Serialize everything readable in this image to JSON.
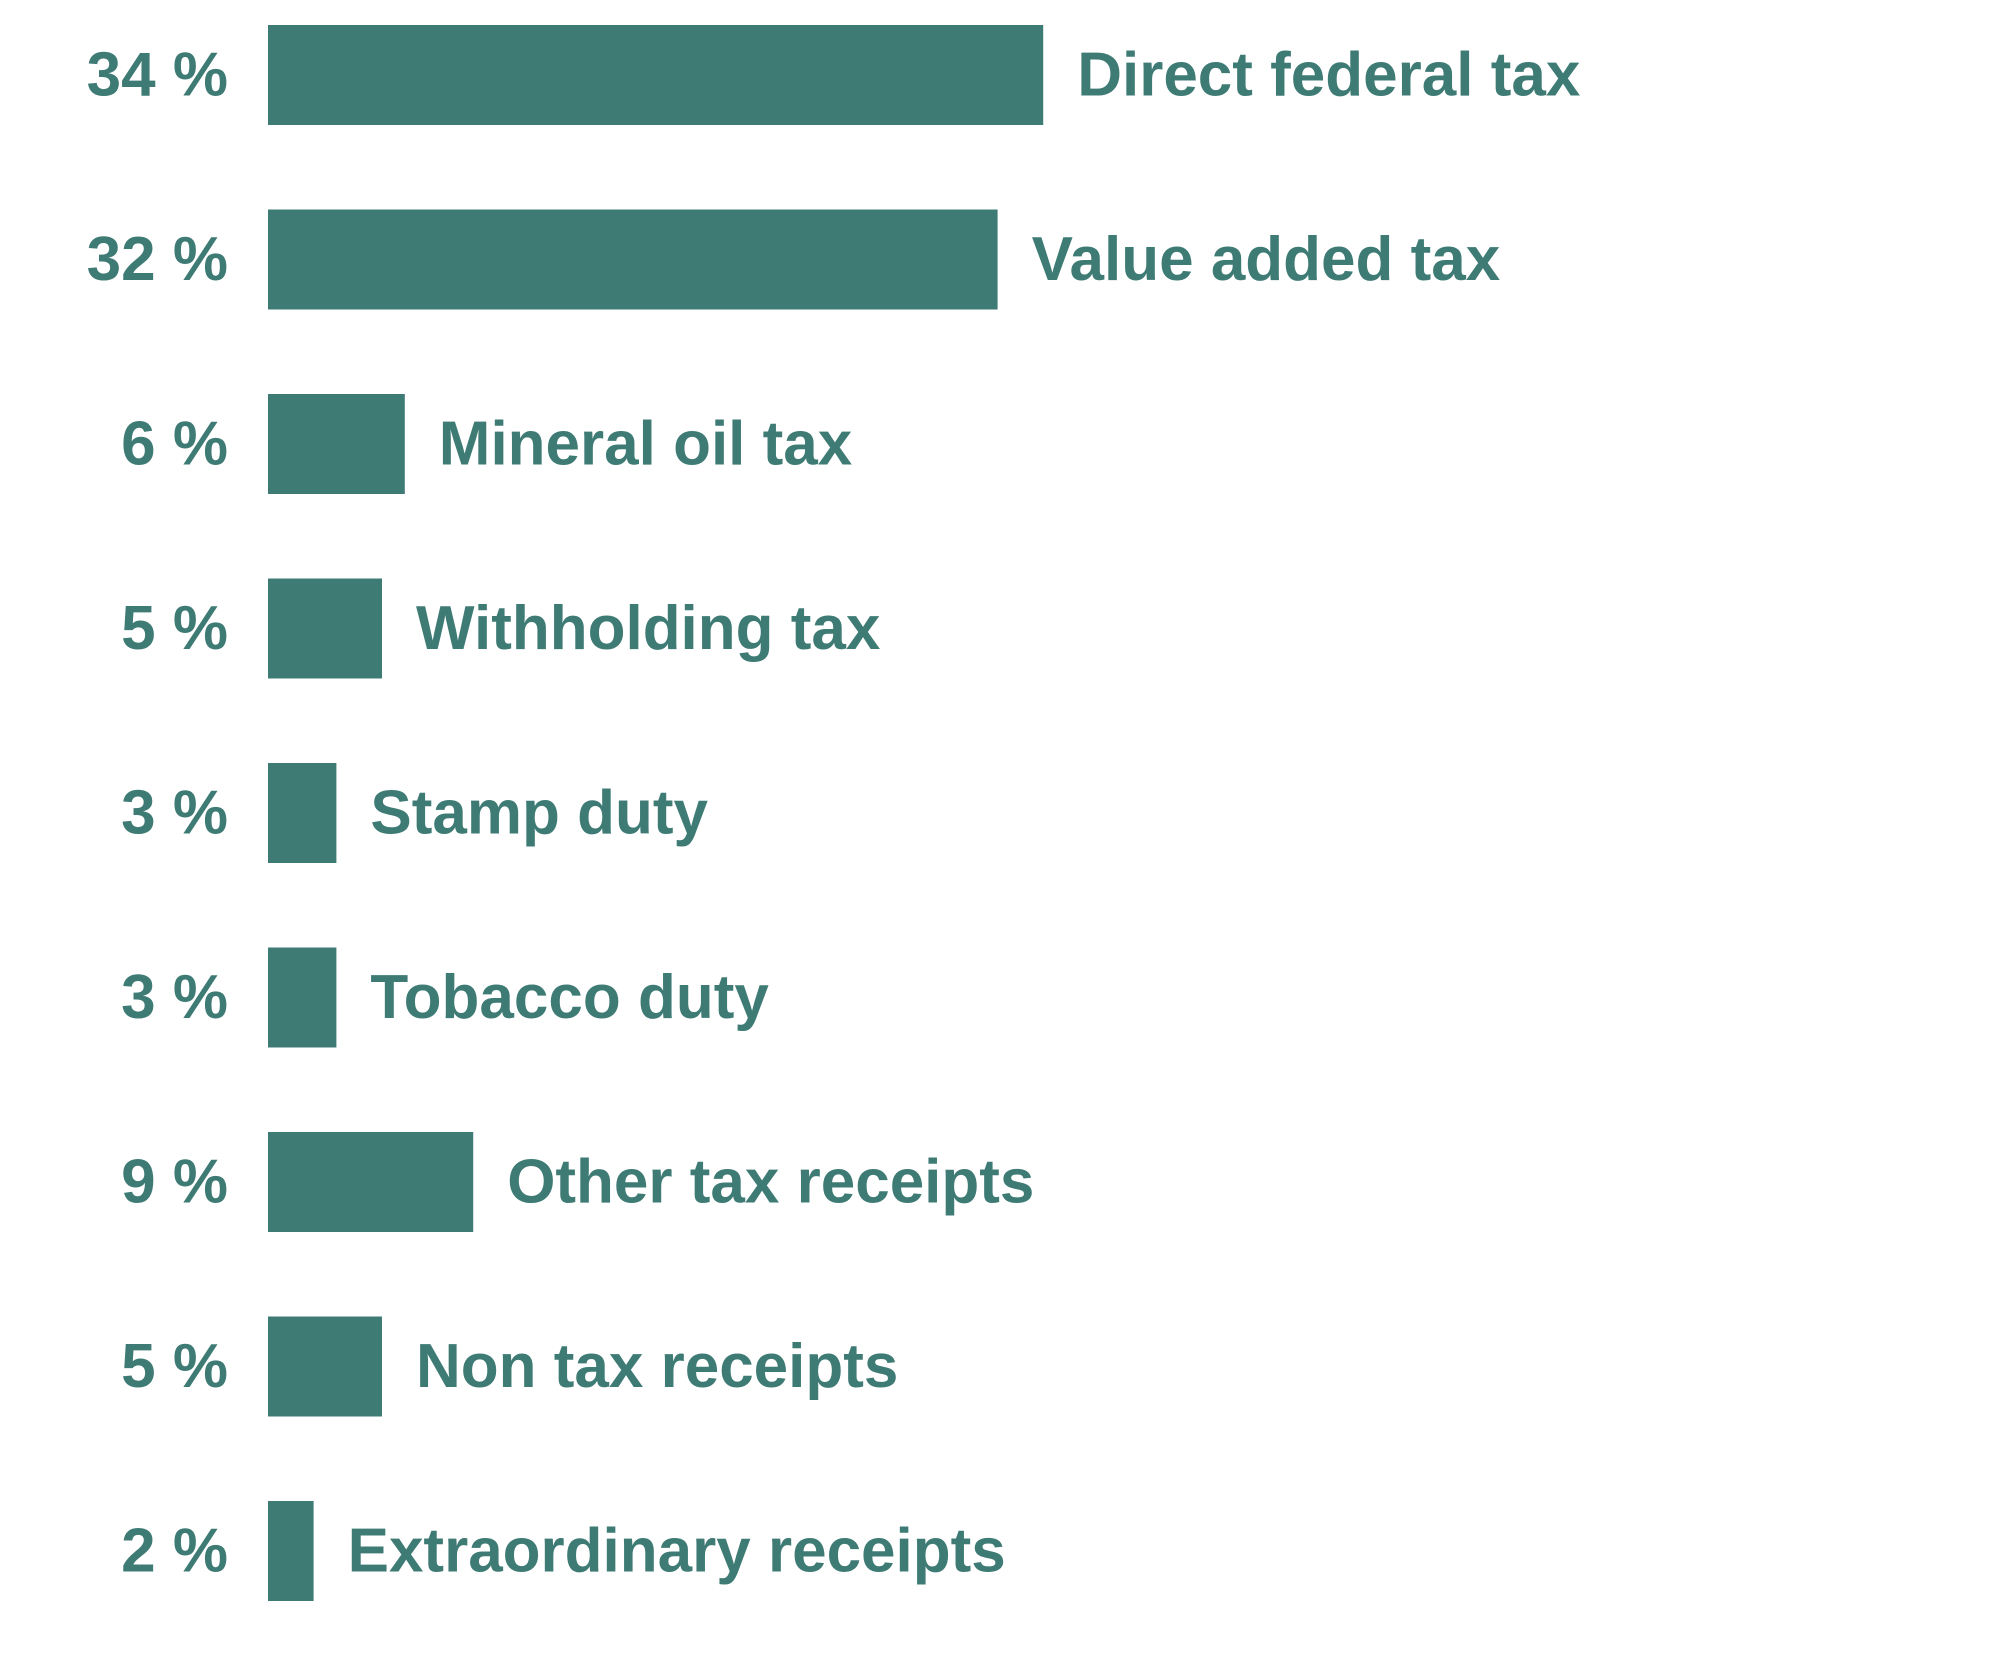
{
  "chart_data": {
    "type": "bar",
    "orientation": "horizontal",
    "categories": [
      "Direct federal tax",
      "Value added tax",
      "Mineral oil tax",
      "Withholding tax",
      "Stamp duty",
      "Tobacco duty",
      "Other tax receipts",
      "Non tax receipts",
      "Extraordinary receipts"
    ],
    "values": [
      34,
      32,
      6,
      5,
      3,
      3,
      9,
      5,
      2
    ],
    "value_labels": [
      "34 %",
      "32 %",
      "6 %",
      "5 %",
      "3 %",
      "3 %",
      "9 %",
      "5 %",
      "2 %"
    ],
    "unit": "%",
    "grid": false,
    "legend": "none",
    "colors": {
      "bar": "#3f7b75",
      "text": "#3f7b75",
      "background": "#ffffff"
    }
  }
}
